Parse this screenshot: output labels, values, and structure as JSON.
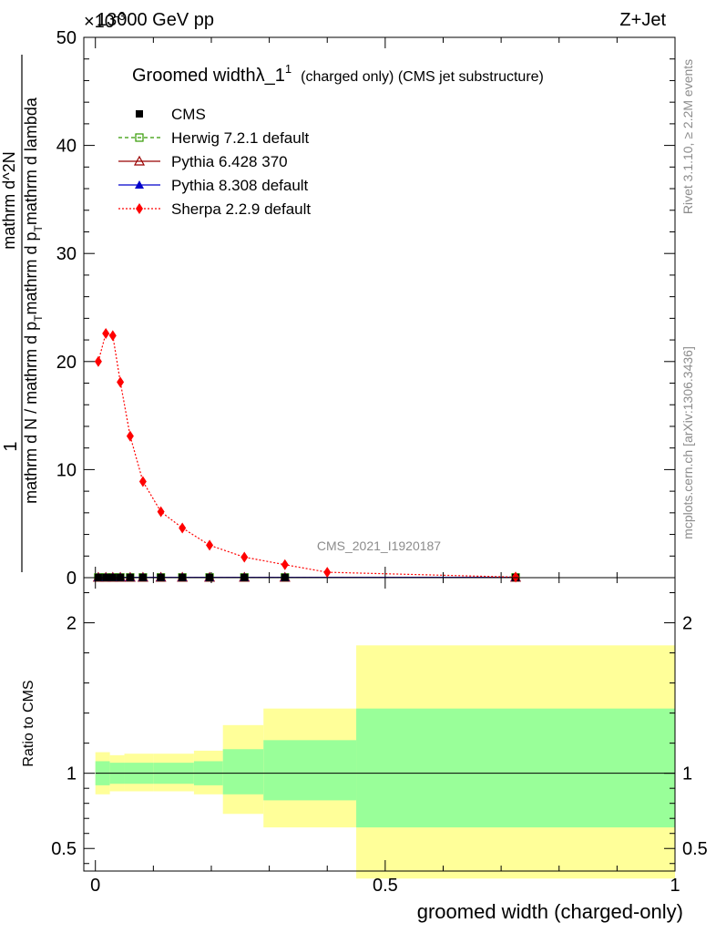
{
  "header": {
    "energy": "13000 GeV pp",
    "process": "Z+Jet",
    "exponent": "×10",
    "exponent_power": "-3"
  },
  "title": {
    "main": "Groomed width",
    "lambda": "λ_1",
    "sup": "1",
    "sub": "(charged only) (CMS jet substructure)"
  },
  "ylabel": {
    "top_num": "1",
    "top_den": "mathrm d N / mathrm d p_T mathrm d p_T mathrm d lambda",
    "frac_num": "mathrm d^2N",
    "frac_den": "mathrm d p_T mathrm d lambda",
    "lines": [
      "mathrm d N / mathrm d p",
      "T",
      "mathrm d p",
      "T",
      "mathrm d lambda"
    ]
  },
  "ratio_ylabel": "Ratio to CMS",
  "xlabel": "groomed width (charged-only)",
  "watermark": "CMS_2021_I1920187",
  "side_right_top": "Rivet 3.1.10, ≥ 2.2M events",
  "side_right_bottom": "mcplots.cern.ch [arXiv:1306.3436]",
  "colors": {
    "cms": "#000000",
    "herwig": "#339900",
    "pythia6": "#990000",
    "pythia8": "#0000cc",
    "sherpa": "#ff0000",
    "band_inner": "#99ff99",
    "band_outer": "#ffff99"
  },
  "legend": [
    {
      "key": "cms",
      "label": "CMS"
    },
    {
      "key": "herwig",
      "label": "Herwig 7.2.1 default"
    },
    {
      "key": "pythia6",
      "label": "Pythia 6.428 370"
    },
    {
      "key": "pythia8",
      "label": "Pythia 8.308 default"
    },
    {
      "key": "sherpa",
      "label": "Sherpa 2.2.9 default"
    }
  ],
  "chart_data": [
    {
      "type": "line",
      "title": "Groomed width λ_1^1 (charged only) (CMS jet substructure)",
      "xlabel": "groomed width (charged-only)",
      "xlim": [
        -0.02,
        1.0
      ],
      "ylim": [
        0,
        50
      ],
      "y_scale_factor": "×10^-3",
      "x_ticks": [
        0,
        0.5,
        1
      ],
      "y_ticks": [
        0,
        10,
        20,
        30,
        40,
        50
      ],
      "series": [
        {
          "name": "Sherpa 2.2.9 default",
          "x": [
            0.005,
            0.018,
            0.03,
            0.043,
            0.06,
            0.082,
            0.113,
            0.15,
            0.197,
            0.257,
            0.327,
            0.4,
            0.725
          ],
          "values": [
            20.0,
            22.6,
            22.4,
            18.1,
            13.1,
            8.9,
            6.1,
            4.6,
            3.0,
            1.9,
            1.2,
            0.5,
            0.05
          ]
        },
        {
          "name": "CMS",
          "x": [
            0.005,
            0.018,
            0.03,
            0.043,
            0.06,
            0.082,
            0.113,
            0.15,
            0.197,
            0.257,
            0.327,
            0.725
          ],
          "values": [
            0.02,
            0.02,
            0.02,
            0.02,
            0.02,
            0.02,
            0.02,
            0.02,
            0.02,
            0.02,
            0.02,
            0.02
          ]
        },
        {
          "name": "Herwig 7.2.1 default",
          "x": [
            0.005,
            0.018,
            0.03,
            0.043,
            0.06,
            0.082,
            0.113,
            0.15,
            0.197,
            0.257,
            0.327,
            0.725
          ],
          "values": [
            0.02,
            0.02,
            0.02,
            0.02,
            0.02,
            0.02,
            0.02,
            0.02,
            0.02,
            0.02,
            0.02,
            0.02
          ]
        },
        {
          "name": "Pythia 6.428 370",
          "x": [
            0.005,
            0.018,
            0.03,
            0.043,
            0.06,
            0.082,
            0.113,
            0.15,
            0.197,
            0.257,
            0.327,
            0.725
          ],
          "values": [
            0.02,
            0.02,
            0.02,
            0.02,
            0.02,
            0.02,
            0.02,
            0.02,
            0.02,
            0.02,
            0.02,
            0.02
          ]
        },
        {
          "name": "Pythia 8.308 default",
          "x": [
            0.005,
            0.018,
            0.03,
            0.043,
            0.06,
            0.082,
            0.113,
            0.15,
            0.197,
            0.257,
            0.327,
            0.725
          ],
          "values": [
            0.02,
            0.02,
            0.02,
            0.02,
            0.02,
            0.02,
            0.02,
            0.02,
            0.02,
            0.02,
            0.02,
            0.02
          ]
        }
      ]
    },
    {
      "type": "area",
      "title": "",
      "ylabel": "Ratio to CMS",
      "xlim": [
        -0.02,
        1.0
      ],
      "ylim": [
        0.35,
        2.3
      ],
      "y_ticks": [
        0.5,
        1,
        2
      ],
      "bins": [
        {
          "x0": 0.0,
          "x1": 0.025,
          "inner": [
            0.92,
            1.08
          ],
          "outer": [
            0.86,
            1.14
          ]
        },
        {
          "x0": 0.025,
          "x1": 0.05,
          "inner": [
            0.93,
            1.07
          ],
          "outer": [
            0.88,
            1.12
          ]
        },
        {
          "x0": 0.05,
          "x1": 0.1,
          "inner": [
            0.93,
            1.07
          ],
          "outer": [
            0.88,
            1.13
          ]
        },
        {
          "x0": 0.1,
          "x1": 0.17,
          "inner": [
            0.93,
            1.07
          ],
          "outer": [
            0.88,
            1.13
          ]
        },
        {
          "x0": 0.17,
          "x1": 0.22,
          "inner": [
            0.92,
            1.08
          ],
          "outer": [
            0.86,
            1.15
          ]
        },
        {
          "x0": 0.22,
          "x1": 0.29,
          "inner": [
            0.86,
            1.16
          ],
          "outer": [
            0.73,
            1.32
          ]
        },
        {
          "x0": 0.29,
          "x1": 0.45,
          "inner": [
            0.82,
            1.22
          ],
          "outer": [
            0.64,
            1.43
          ]
        },
        {
          "x0": 0.45,
          "x1": 1.0,
          "inner": [
            0.64,
            1.43
          ],
          "outer": [
            0.3,
            1.85
          ]
        }
      ],
      "reference_line": 1
    }
  ]
}
